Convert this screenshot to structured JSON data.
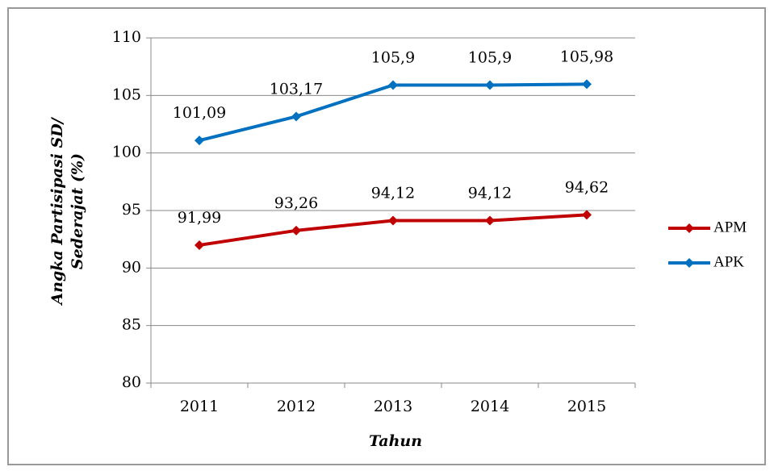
{
  "chart_data": {
    "type": "line",
    "categories": [
      "2011",
      "2012",
      "2013",
      "2014",
      "2015"
    ],
    "series": [
      {
        "name": "APM",
        "color": "#c00000",
        "values": [
          91.99,
          93.26,
          94.12,
          94.12,
          94.62
        ],
        "value_labels": [
          "91,99",
          "93,26",
          "94,12",
          "94,12",
          "94,62"
        ]
      },
      {
        "name": "APK",
        "color": "#0070c0",
        "values": [
          101.09,
          103.17,
          105.9,
          105.9,
          105.98
        ],
        "value_labels": [
          "101,09",
          "103,17",
          "105,9",
          "105,9",
          "105,98"
        ]
      }
    ],
    "ylim": [
      80,
      110
    ],
    "yticks": [
      80,
      85,
      90,
      95,
      100,
      105,
      110
    ],
    "grid": true,
    "xlabel": "Tahun",
    "ylabel": [
      "Angka Partisipasi SD/",
      "Sederajat (%)"
    ],
    "legend": "right"
  }
}
